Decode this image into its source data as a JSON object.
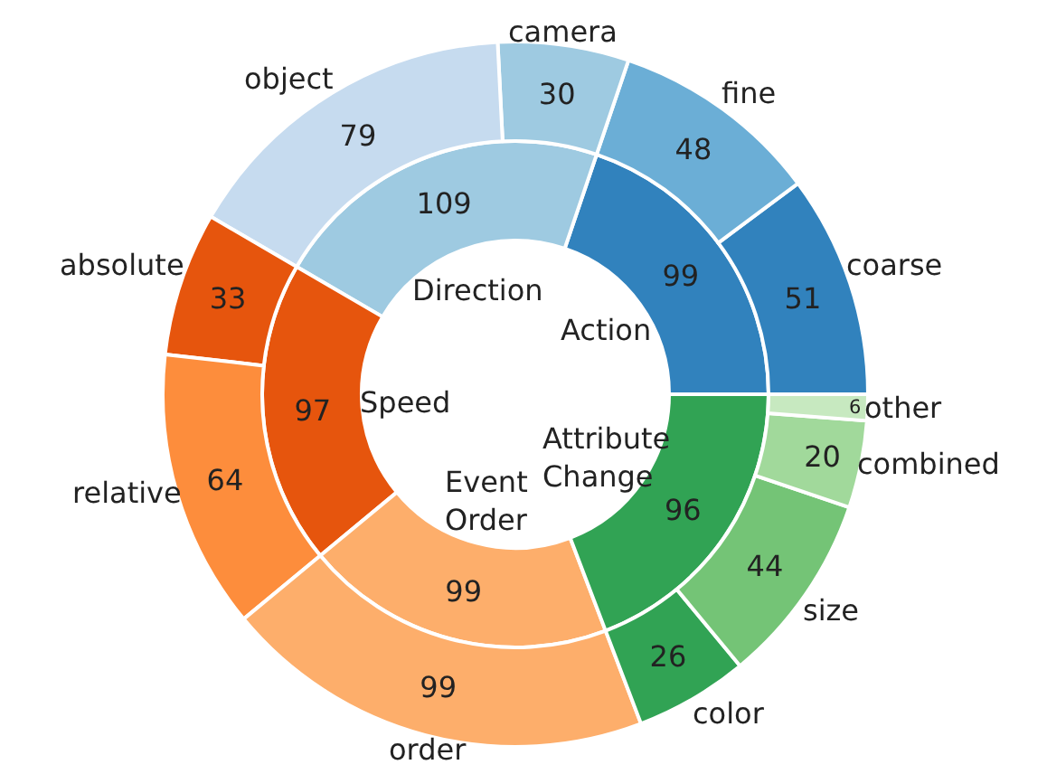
{
  "chart_data": [
    {
      "type": "donut",
      "data_labels": true,
      "categories": [
        "Action",
        "Direction",
        "Speed",
        "Event\nOrder",
        "Attribute\nChange"
      ],
      "values": [
        99,
        109,
        97,
        99,
        96
      ],
      "colors": [
        "#3182bd",
        "#9ecae1",
        "#e6550d",
        "#fdae6b",
        "#31a354"
      ]
    },
    {
      "type": "donut",
      "data_labels": true,
      "categories": [
        "coarse",
        "fine",
        "camera",
        "object",
        "absolute",
        "relative",
        "order",
        "color",
        "size",
        "combined",
        "other"
      ],
      "values": [
        51,
        48,
        30,
        79,
        33,
        64,
        99,
        26,
        44,
        20,
        6
      ],
      "colors": [
        "#3182bd",
        "#6baed6",
        "#9ecae1",
        "#c6dbef",
        "#e6550d",
        "#fd8d3c",
        "#fdae6b",
        "#31a354",
        "#74c476",
        "#a1d99b",
        "#c7e9c0"
      ]
    }
  ]
}
